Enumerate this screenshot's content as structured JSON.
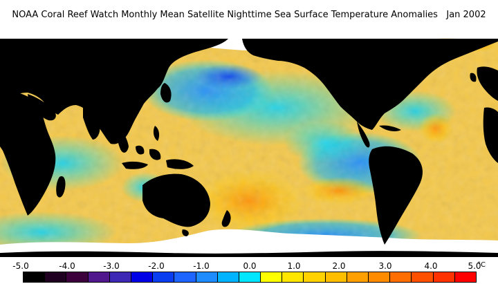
{
  "header": {
    "title": "NOAA Coral Reef Watch Monthly Mean Satellite Nighttime Sea Surface Temperature Anomalies",
    "date": "Jan 2002"
  },
  "legend": {
    "unit": "°C",
    "tick_labels": [
      "-5.0",
      "-4.0",
      "-3.0",
      "-2.0",
      "-1.0",
      "0.0",
      "1.0",
      "2.0",
      "3.0",
      "4.0",
      "5.0"
    ],
    "swatches": [
      "#000000",
      "#200020",
      "#3c003c",
      "#50188c",
      "#3c28b4",
      "#0000e6",
      "#0a3cf0",
      "#1e64ff",
      "#1e8cff",
      "#00b4ff",
      "#00e6ff",
      "#ffff00",
      "#ffe600",
      "#ffd200",
      "#ffbe00",
      "#ffa000",
      "#ff8c00",
      "#ff6e00",
      "#ff5000",
      "#ff3200",
      "#ff0000"
    ]
  },
  "map_colors": {
    "land": "#000000",
    "ice": "#ffffff",
    "ocean_base": "#f4c84a"
  }
}
